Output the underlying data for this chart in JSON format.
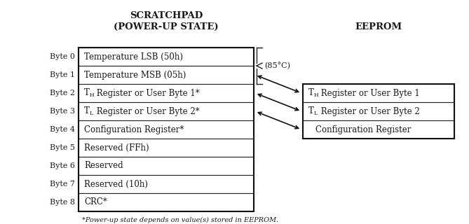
{
  "title1": "SCRATCHPAD",
  "title2": "(POWER-UP STATE)",
  "eeprom_title": "EEPROM",
  "footnote": "*Power-up state depends on value(s) stored in EEPROM.",
  "scratchpad_rows": [
    "Temperature LSB (50h)",
    "Temperature MSB (05h)",
    "TH Register or User Byte 1*",
    "TL Register or User Byte 2*",
    "Configuration Register*",
    "Reserved (FFh)",
    "Reserved",
    "Reserved (10h)",
    "CRC*"
  ],
  "byte_labels": [
    "Byte 0",
    "Byte 1",
    "Byte 2",
    "Byte 3",
    "Byte 4",
    "Byte 5",
    "Byte 6",
    "Byte 7",
    "Byte 8"
  ],
  "eeprom_rows": [
    "TH Register or User Byte 1",
    "TL Register or User Byte 2",
    "Configuration Register"
  ],
  "temp_label": "(85°C)",
  "bg_color": "#ffffff",
  "text_color": "#1a1a1a"
}
